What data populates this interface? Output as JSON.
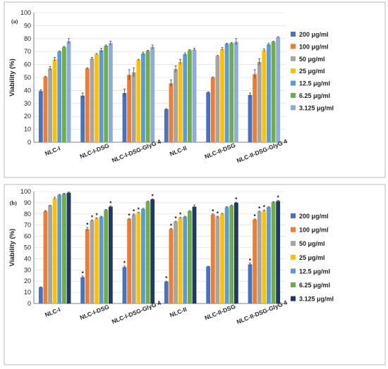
{
  "chart_data": [
    {
      "type": "bar",
      "panel_label": "(a)",
      "ylabel": "Viability (%)",
      "ylim": [
        0,
        100
      ],
      "ytick_step": 10,
      "grid": true,
      "legend_position": "right",
      "categories": [
        "NLC-I",
        "NLC-I-DSG",
        "NLC-I-DSG-GlyG 4",
        "NLC-II",
        "NLC-II-DSG",
        "NLC-II-DSG-GlyG 4"
      ],
      "series": [
        {
          "name": "200 μg/ml",
          "color": "#4472c4",
          "values": [
            39.5,
            36,
            38,
            25.5,
            38.5,
            36.5
          ],
          "errors": [
            1,
            2,
            3,
            0.5,
            0.5,
            1.5
          ]
        },
        {
          "name": "100 μg/ml",
          "color": "#ed7d31",
          "values": [
            50.5,
            57,
            52,
            45.5,
            50,
            52.5
          ],
          "errors": [
            0.5,
            0.5,
            4,
            2.5,
            0.5,
            3.5
          ]
        },
        {
          "name": "50 μg/ml",
          "color": "#a5a5a5",
          "values": [
            57,
            64.5,
            54,
            56.5,
            66.5,
            62
          ],
          "errors": [
            1.5,
            1,
            3.5,
            2.5,
            0.5,
            2.5
          ]
        },
        {
          "name": "25 μg/ml",
          "color": "#ffc000",
          "values": [
            64,
            68,
            63.5,
            62,
            72,
            71
          ],
          "errors": [
            1.5,
            0.5,
            0.5,
            2,
            1,
            1
          ]
        },
        {
          "name": "12.5 μg/ml",
          "color": "#5b9bd5",
          "values": [
            70,
            71,
            68.5,
            68,
            76,
            75.5
          ],
          "errors": [
            0.5,
            1.5,
            1,
            1,
            0.5,
            1
          ]
        },
        {
          "name": "6.25 μg/ml",
          "color": "#70ad47",
          "values": [
            73.5,
            74.5,
            70.5,
            71,
            76.5,
            77.5
          ],
          "errors": [
            0.5,
            0.5,
            0.5,
            0.5,
            0.5,
            0.5
          ]
        },
        {
          "name": "3.125 μg/ml",
          "color": "#8faadc",
          "values": [
            78,
            76.5,
            73.5,
            71.5,
            77.5,
            81
          ],
          "errors": [
            2,
            1.5,
            1.5,
            1,
            2.5,
            0.5
          ]
        }
      ]
    },
    {
      "type": "bar",
      "panel_label": "(b)",
      "ylabel": "Viability (%)",
      "ylim": [
        0,
        100
      ],
      "ytick_step": 10,
      "grid": true,
      "legend_position": "right",
      "categories": [
        "NLC-I",
        "NLC-I-DSG",
        "NLC-I-DSG-GlyG 4",
        "NLC-II",
        "NLC-II-DSG",
        "NLC-II-DSG-GlyG 4"
      ],
      "series": [
        {
          "name": "200 μg/ml",
          "color": "#4472c4",
          "values": [
            14.5,
            23.5,
            32.5,
            19.5,
            33,
            35
          ],
          "errors": [
            0.3,
            1,
            1,
            0.5,
            0.3,
            1
          ],
          "stars": [
            "",
            "*",
            "*",
            "*",
            "",
            "*"
          ]
        },
        {
          "name": "100 μg/ml",
          "color": "#ed7d31",
          "values": [
            82.5,
            66.5,
            75.5,
            66.5,
            79.5,
            75
          ],
          "errors": [
            0.5,
            1.5,
            0.5,
            0.5,
            0.5,
            0.5
          ],
          "stars": [
            "",
            "*",
            "*",
            "*",
            "*",
            "*"
          ]
        },
        {
          "name": "50 μg/ml",
          "color": "#a5a5a5",
          "values": [
            87.5,
            74,
            79.5,
            73,
            77.5,
            82
          ],
          "errors": [
            0.3,
            0.5,
            0.5,
            0.5,
            0.5,
            0.5
          ],
          "stars": [
            "",
            "*",
            "*",
            "*",
            "*",
            "*"
          ]
        },
        {
          "name": "25 μg/ml",
          "color": "#ffc000",
          "values": [
            94,
            76,
            81,
            76.5,
            80,
            83
          ],
          "errors": [
            1,
            0.5,
            0.5,
            0.5,
            0.5,
            0.5
          ],
          "stars": [
            "",
            "*",
            "*",
            "*",
            "",
            "*"
          ]
        },
        {
          "name": "12.5 μg/ml",
          "color": "#5b9bd5",
          "values": [
            97,
            77.5,
            84.5,
            77.5,
            86,
            86
          ],
          "errors": [
            0.5,
            0.5,
            0.5,
            0.5,
            0.5,
            0.5
          ],
          "stars": [
            "",
            "",
            "",
            "",
            "",
            ""
          ]
        },
        {
          "name": "6.25 μg/ml",
          "color": "#70ad47",
          "values": [
            98,
            83.5,
            91,
            82.5,
            87.5,
            90.5
          ],
          "errors": [
            0.5,
            0.5,
            0.5,
            0.5,
            0.5,
            0.5
          ],
          "stars": [
            "",
            "",
            "",
            "",
            "",
            ""
          ]
        },
        {
          "name": "3.125 μg/ml",
          "color": "#203864",
          "values": [
            99,
            86.5,
            93,
            86.5,
            90,
            91.5
          ],
          "errors": [
            0.5,
            0.5,
            0.5,
            1.5,
            0.5,
            0.5
          ],
          "stars": [
            "",
            "*",
            "*",
            "",
            "*",
            "*"
          ]
        }
      ]
    }
  ]
}
